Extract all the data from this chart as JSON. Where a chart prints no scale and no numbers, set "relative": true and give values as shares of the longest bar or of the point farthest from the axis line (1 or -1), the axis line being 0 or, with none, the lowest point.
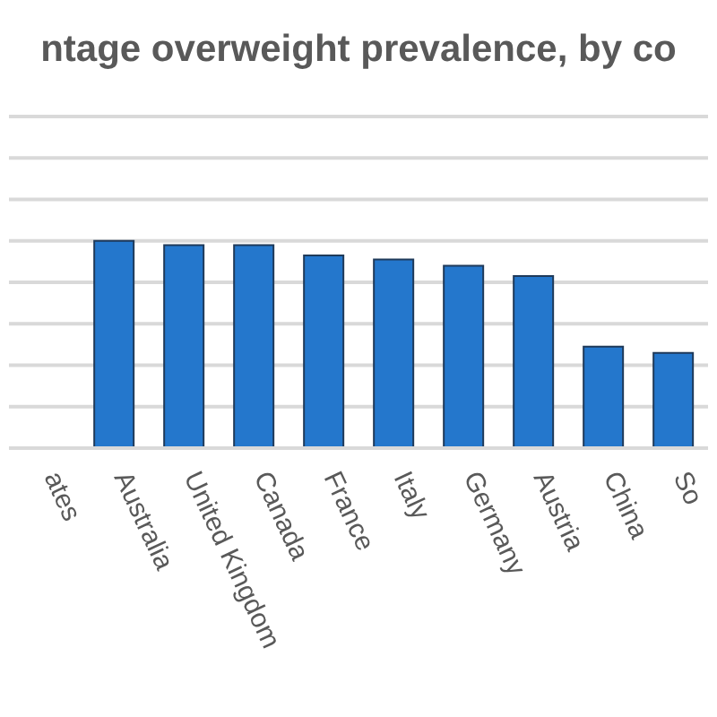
{
  "chart_data": {
    "type": "bar",
    "title": "ntage overweight prevalence, by co",
    "categories": [
      "ates",
      "Australia",
      "United Kingdom",
      "Canada",
      "France",
      "Italy",
      "Germany",
      "Austria",
      "China",
      "So"
    ],
    "values": [
      null,
      1,
      0.98,
      0.98,
      0.93,
      0.91,
      0.88,
      0.83,
      0.49,
      0.46
    ],
    "color": "#2477cc",
    "relative": true,
    "grid": "y",
    "legend": false
  }
}
